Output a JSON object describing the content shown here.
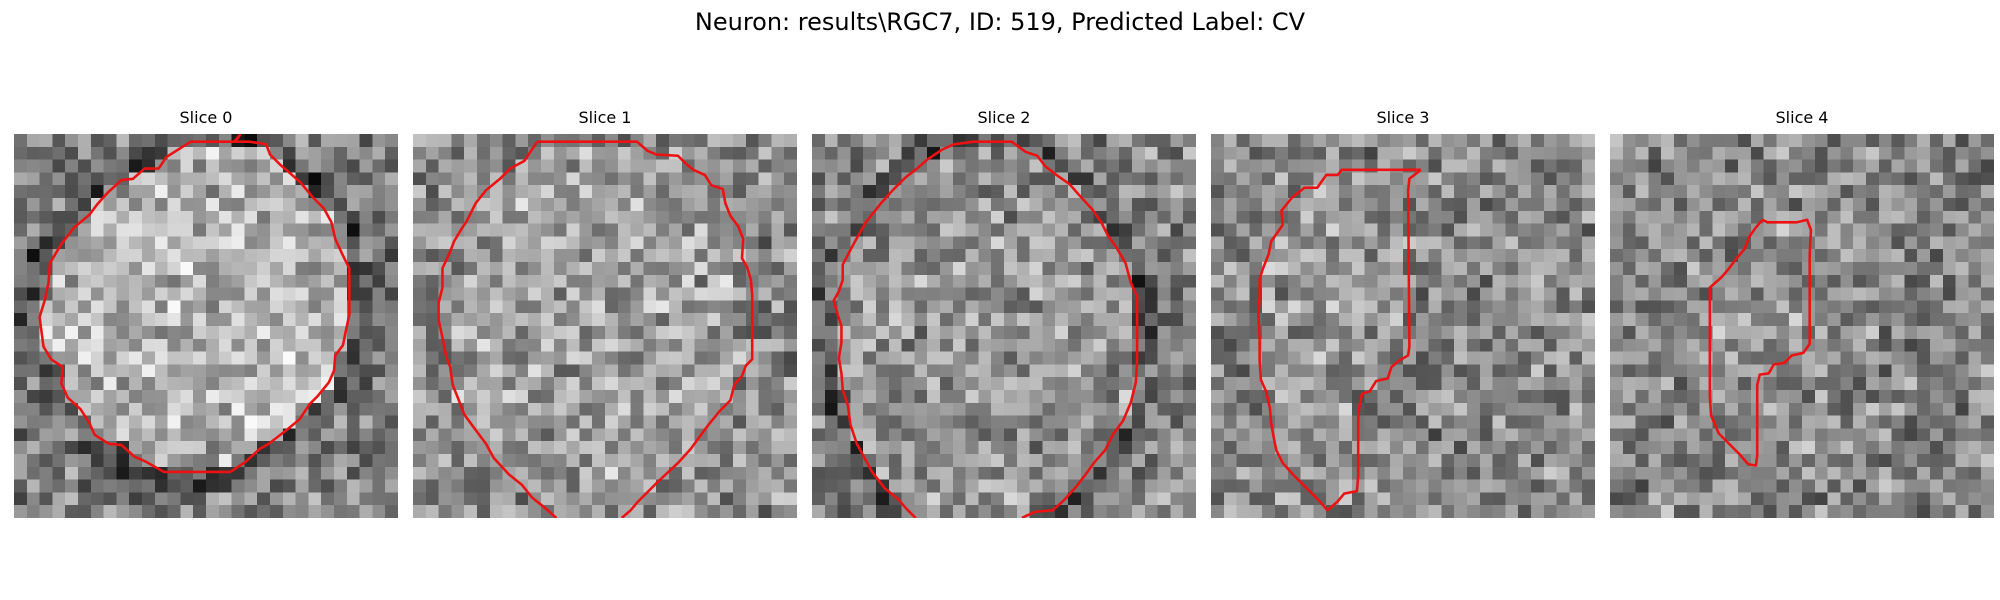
{
  "figure": {
    "title": "Neuron: results\\RGC7, ID: 519, Predicted Label: CV",
    "contour_color": "#ee1111"
  },
  "panels": [
    {
      "title": "Slice 0",
      "image_description": "grayscale noisy micrograph with bright roughly circular cell body and darker ring",
      "contour": [
        [
          17.7,
          0
        ],
        [
          17.2,
          0.6
        ],
        [
          13.8,
          0.6
        ],
        [
          11.9,
          1.8
        ],
        [
          11.3,
          2.7
        ],
        [
          10.2,
          2.7
        ],
        [
          9.3,
          3.5
        ],
        [
          8.4,
          3.6
        ],
        [
          7.3,
          4.6
        ],
        [
          6.5,
          5.5
        ],
        [
          5.9,
          6.3
        ],
        [
          4.7,
          7.3
        ],
        [
          3.7,
          8.6
        ],
        [
          2.8,
          10.1
        ],
        [
          2.7,
          11.6
        ],
        [
          2.4,
          13.0
        ],
        [
          2.0,
          14.3
        ],
        [
          2.3,
          16.6
        ],
        [
          2.9,
          17.6
        ],
        [
          3.8,
          18.2
        ],
        [
          3.7,
          19.5
        ],
        [
          4.2,
          20.6
        ],
        [
          5.2,
          21.5
        ],
        [
          5.9,
          22.6
        ],
        [
          6.3,
          23.5
        ],
        [
          7.4,
          24.2
        ],
        [
          8.4,
          24.3
        ],
        [
          9.4,
          25.2
        ],
        [
          10.3,
          25.6
        ],
        [
          11.7,
          26.4
        ],
        [
          13.7,
          26.4
        ],
        [
          15.2,
          26.4
        ],
        [
          16.9,
          26.4
        ],
        [
          18.1,
          25.6
        ],
        [
          19.2,
          24.6
        ],
        [
          19.9,
          24.2
        ],
        [
          21.2,
          23.2
        ],
        [
          22.3,
          22.3
        ],
        [
          23.1,
          21.1
        ],
        [
          23.7,
          20.5
        ],
        [
          24.6,
          19.4
        ],
        [
          25.0,
          18.5
        ],
        [
          25.1,
          17.3
        ],
        [
          25.7,
          16.5
        ],
        [
          25.9,
          15.5
        ],
        [
          26.2,
          14.1
        ],
        [
          26.2,
          12.2
        ],
        [
          26.2,
          10.5
        ],
        [
          25.7,
          9.5
        ],
        [
          25.1,
          8.2
        ],
        [
          24.8,
          6.9
        ],
        [
          24.2,
          5.8
        ],
        [
          23.3,
          4.9
        ],
        [
          22.4,
          3.8
        ],
        [
          21.5,
          3.0
        ],
        [
          20.8,
          2.4
        ],
        [
          20.0,
          1.6
        ],
        [
          19.7,
          0.8
        ],
        [
          18.4,
          0.6
        ],
        [
          17.3,
          0.6
        ],
        [
          17.7,
          0
        ]
      ]
    },
    {
      "title": "Slice 1",
      "image_description": "grayscale noisy micrograph with large circular cell body",
      "contour": [
        [
          9.7,
          0.6
        ],
        [
          17.5,
          0.6
        ],
        [
          18.3,
          1.3
        ],
        [
          19.0,
          1.6
        ],
        [
          20.7,
          1.7
        ],
        [
          21.3,
          2.3
        ],
        [
          21.9,
          2.8
        ],
        [
          22.8,
          3.2
        ],
        [
          23.3,
          4.0
        ],
        [
          24.2,
          4.3
        ],
        [
          24.4,
          5.4
        ],
        [
          24.8,
          6.4
        ],
        [
          25.4,
          7.2
        ],
        [
          25.8,
          8.2
        ],
        [
          25.7,
          9.7
        ],
        [
          26.1,
          10.4
        ],
        [
          26.4,
          11.4
        ],
        [
          26.5,
          12.6
        ],
        [
          26.5,
          14.6
        ],
        [
          26.5,
          16.8
        ],
        [
          26.5,
          17.6
        ],
        [
          26.0,
          18.1
        ],
        [
          25.7,
          18.9
        ],
        [
          25.1,
          19.6
        ],
        [
          24.8,
          20.8
        ],
        [
          24.0,
          21.6
        ],
        [
          23.1,
          22.7
        ],
        [
          22.5,
          23.5
        ],
        [
          21.7,
          24.6
        ],
        [
          20.7,
          25.7
        ],
        [
          19.2,
          27.1
        ],
        [
          18.3,
          28.0
        ],
        [
          17.5,
          28.8
        ],
        [
          17.0,
          29.4
        ],
        [
          16.3,
          30.0
        ]
      ],
      "contour2": [
        [
          11.2,
          30.0
        ],
        [
          10.3,
          29.2
        ],
        [
          9.3,
          28.4
        ],
        [
          8.5,
          27.4
        ],
        [
          7.5,
          26.6
        ],
        [
          6.3,
          25.3
        ],
        [
          5.7,
          24.2
        ],
        [
          4.8,
          23.0
        ],
        [
          4.0,
          21.9
        ],
        [
          3.5,
          20.6
        ],
        [
          3.1,
          19.6
        ],
        [
          2.9,
          18.2
        ],
        [
          2.6,
          17.4
        ],
        [
          2.3,
          15.9
        ],
        [
          2.0,
          14.5
        ],
        [
          2.0,
          13.2
        ],
        [
          2.3,
          12.0
        ],
        [
          2.3,
          10.5
        ],
        [
          2.9,
          9.2
        ],
        [
          3.2,
          8.4
        ],
        [
          3.8,
          7.4
        ],
        [
          4.2,
          6.8
        ],
        [
          4.9,
          5.4
        ],
        [
          5.7,
          4.4
        ],
        [
          6.8,
          3.5
        ],
        [
          7.6,
          2.7
        ],
        [
          8.7,
          2.1
        ],
        [
          9.7,
          0.6
        ]
      ]
    },
    {
      "title": "Slice 2",
      "image_description": "grayscale noisy micrograph with circular cell body and dark ring",
      "contour": [
        [
          8.1,
          30.0
        ],
        [
          7.4,
          29.3
        ],
        [
          6.7,
          28.5
        ],
        [
          5.7,
          27.7
        ],
        [
          4.7,
          26.4
        ],
        [
          4.1,
          25.3
        ],
        [
          3.5,
          24.2
        ],
        [
          3.0,
          22.7
        ],
        [
          2.8,
          21.2
        ],
        [
          2.4,
          20.0
        ],
        [
          2.3,
          18.7
        ],
        [
          2.1,
          17.5
        ],
        [
          2.3,
          16.3
        ],
        [
          2.3,
          15.0
        ],
        [
          2.0,
          14.1
        ],
        [
          1.7,
          13.0
        ],
        [
          2.1,
          12.3
        ],
        [
          2.4,
          11.4
        ],
        [
          2.4,
          10.2
        ],
        [
          3.3,
          8.5
        ],
        [
          4.2,
          6.9
        ],
        [
          5.4,
          5.4
        ],
        [
          6.3,
          4.4
        ],
        [
          7.3,
          3.4
        ],
        [
          8.2,
          2.7
        ],
        [
          9.0,
          2.0
        ],
        [
          10.2,
          1.2
        ],
        [
          11.1,
          0.8
        ],
        [
          12.6,
          0.6
        ],
        [
          14.3,
          0.6
        ],
        [
          15.6,
          0.6
        ],
        [
          16.7,
          1.4
        ],
        [
          17.6,
          1.7
        ],
        [
          18.2,
          2.5
        ],
        [
          19.1,
          3.2
        ],
        [
          20.1,
          3.9
        ],
        [
          20.9,
          4.8
        ],
        [
          21.9,
          5.9
        ],
        [
          22.6,
          6.9
        ],
        [
          23.1,
          7.9
        ],
        [
          23.8,
          8.9
        ],
        [
          24.5,
          10.1
        ],
        [
          24.9,
          11.6
        ],
        [
          25.4,
          12.7
        ],
        [
          25.4,
          14.4
        ],
        [
          25.4,
          16.3
        ],
        [
          25.4,
          17.7
        ],
        [
          25.3,
          19.4
        ],
        [
          24.9,
          21.0
        ],
        [
          24.3,
          22.4
        ],
        [
          23.5,
          23.5
        ],
        [
          22.9,
          24.7
        ],
        [
          22.1,
          25.6
        ],
        [
          21.3,
          26.7
        ],
        [
          20.6,
          27.6
        ],
        [
          19.7,
          28.6
        ],
        [
          18.8,
          29.4
        ],
        [
          17.5,
          29.5
        ],
        [
          16.8,
          29.8
        ],
        [
          16.4,
          30.0
        ]
      ]
    },
    {
      "title": "Slice 3",
      "image_description": "grayscale noisy micrograph with irregular outlined region",
      "contour": [
        [
          16.4,
          2.8
        ],
        [
          15.5,
          3.5
        ],
        [
          15.4,
          4.4
        ],
        [
          15.5,
          16.6
        ],
        [
          15.4,
          17.3
        ],
        [
          14.7,
          17.7
        ],
        [
          14.1,
          18.2
        ],
        [
          13.8,
          19.1
        ],
        [
          12.9,
          19.3
        ],
        [
          12.4,
          20.1
        ],
        [
          11.8,
          20.3
        ],
        [
          11.6,
          21.2
        ],
        [
          11.5,
          22.2
        ],
        [
          11.5,
          23.4
        ],
        [
          11.5,
          25.0
        ],
        [
          11.5,
          26.7
        ],
        [
          11.4,
          27.9
        ],
        [
          10.4,
          28.1
        ],
        [
          9.9,
          28.7
        ],
        [
          9.1,
          29.4
        ],
        [
          8.4,
          28.6
        ],
        [
          7.4,
          27.6
        ],
        [
          6.4,
          26.6
        ],
        [
          5.6,
          25.7
        ],
        [
          5.1,
          24.7
        ],
        [
          4.9,
          23.7
        ],
        [
          4.7,
          22.6
        ],
        [
          4.6,
          21.4
        ],
        [
          4.3,
          20.1
        ],
        [
          3.9,
          19.2
        ],
        [
          3.8,
          17.7
        ],
        [
          3.8,
          15.9
        ],
        [
          3.7,
          14.2
        ],
        [
          3.8,
          12.7
        ],
        [
          3.8,
          11.3
        ],
        [
          4.1,
          10.4
        ],
        [
          4.5,
          9.4
        ],
        [
          4.7,
          8.4
        ],
        [
          5.6,
          7.1
        ],
        [
          5.5,
          6.0
        ],
        [
          6.3,
          5.0
        ],
        [
          7.3,
          4.2
        ],
        [
          8.3,
          4.2
        ],
        [
          9.0,
          3.2
        ],
        [
          9.9,
          3.2
        ],
        [
          10.2,
          2.8
        ],
        [
          11.3,
          2.8
        ],
        [
          12.9,
          2.8
        ],
        [
          14.5,
          2.8
        ],
        [
          16.0,
          2.8
        ],
        [
          16.4,
          2.8
        ]
      ]
    },
    {
      "title": "Slice 4",
      "image_description": "grayscale noisy micrograph with small elongated outlined region",
      "contour": [
        [
          11.9,
          6.7
        ],
        [
          12.3,
          6.9
        ],
        [
          14.6,
          6.9
        ],
        [
          15.4,
          6.7
        ],
        [
          15.7,
          7.5
        ],
        [
          15.6,
          9.4
        ],
        [
          15.6,
          11.4
        ],
        [
          15.6,
          13.0
        ],
        [
          15.6,
          14.4
        ],
        [
          15.6,
          15.6
        ],
        [
          15.6,
          16.4
        ],
        [
          15.1,
          17.1
        ],
        [
          14.2,
          17.3
        ],
        [
          13.6,
          17.9
        ],
        [
          12.8,
          18.0
        ],
        [
          12.4,
          18.7
        ],
        [
          11.7,
          18.8
        ],
        [
          11.5,
          19.6
        ],
        [
          11.5,
          20.8
        ],
        [
          11.5,
          22.1
        ],
        [
          11.5,
          23.7
        ],
        [
          11.5,
          25.1
        ],
        [
          11.4,
          25.9
        ],
        [
          10.8,
          25.8
        ],
        [
          10.1,
          25.0
        ],
        [
          9.3,
          24.2
        ],
        [
          8.5,
          23.4
        ],
        [
          7.9,
          22.0
        ],
        [
          7.8,
          20.5
        ],
        [
          7.8,
          18.8
        ],
        [
          7.8,
          17.1
        ],
        [
          7.8,
          15.4
        ],
        [
          7.8,
          13.8
        ],
        [
          7.8,
          12.0
        ],
        [
          8.7,
          11.2
        ],
        [
          9.3,
          10.5
        ],
        [
          9.9,
          9.7
        ],
        [
          10.5,
          9.0
        ],
        [
          10.9,
          8.0
        ],
        [
          11.4,
          7.3
        ],
        [
          11.9,
          6.7
        ]
      ]
    }
  ],
  "render": {
    "grid": 30,
    "seed_base": 519
  }
}
